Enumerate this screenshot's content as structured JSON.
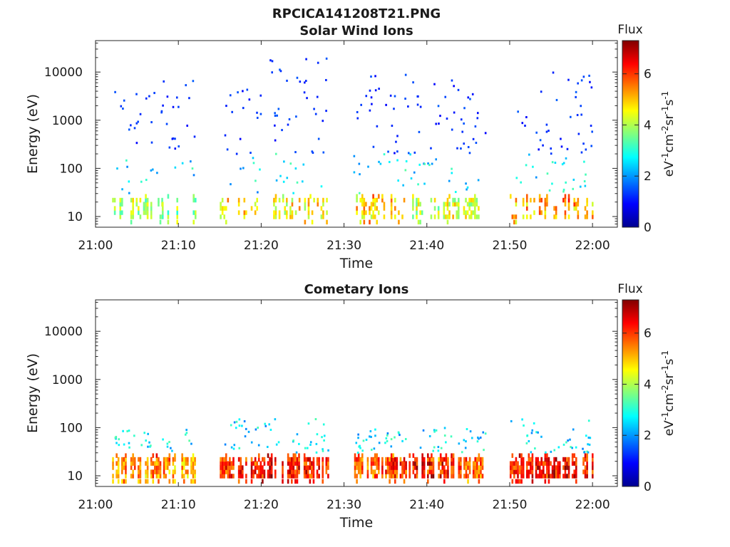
{
  "figure_title": "RPCICA141208T21.PNG",
  "chart_data": [
    {
      "type": "heatmap",
      "title": "Solar Wind Ions",
      "xlabel": "Time",
      "ylabel": "Energy (eV)",
      "xlim": [
        "21:00",
        "22:03"
      ],
      "ylim": [
        6,
        45000
      ],
      "yscale": "log",
      "x_ticks": [
        "21:00",
        "21:10",
        "21:20",
        "21:30",
        "21:40",
        "21:50",
        "22:00"
      ],
      "y_ticks": [
        "10",
        "100",
        "1000",
        "10000"
      ],
      "colorbar": {
        "label": "Flux",
        "units": "eV-1cm-2sr-1s-1",
        "range": [
          0,
          7.3
        ],
        "ticks": [
          "0",
          "2",
          "4",
          "6"
        ]
      },
      "clusters": [
        {
          "start": "21:02",
          "end": "21:08",
          "low_energy_flux": 3.5,
          "low_peak": 4.5,
          "scatter_density": 0.8,
          "scatter_max_eV": 4000
        },
        {
          "start": "21:08",
          "end": "21:12",
          "low_energy_flux": 3.5,
          "low_peak": 4.5,
          "scatter_density": 0.9,
          "scatter_max_eV": 8000
        },
        {
          "start": "21:15",
          "end": "21:20",
          "low_energy_flux": 4.3,
          "low_peak": 5.5,
          "scatter_density": 0.8,
          "scatter_max_eV": 6000
        },
        {
          "start": "21:21",
          "end": "21:28",
          "low_energy_flux": 4.3,
          "low_peak": 5.6,
          "scatter_density": 1.1,
          "scatter_max_eV": 28000
        },
        {
          "start": "21:31",
          "end": "21:38",
          "low_energy_flux": 4.5,
          "low_peak": 5.8,
          "scatter_density": 1.0,
          "scatter_max_eV": 9000
        },
        {
          "start": "21:38",
          "end": "21:47",
          "low_energy_flux": 3.8,
          "low_peak": 5.0,
          "scatter_density": 1.0,
          "scatter_max_eV": 7000
        },
        {
          "start": "21:50",
          "end": "22:00",
          "low_energy_flux": 4.6,
          "low_peak": 6.2,
          "scatter_density": 1.0,
          "scatter_max_eV": 10000
        }
      ]
    },
    {
      "type": "heatmap",
      "title": "Cometary Ions",
      "xlabel": "Time",
      "ylabel": "Energy (eV)",
      "xlim": [
        "21:00",
        "22:03"
      ],
      "ylim": [
        6,
        45000
      ],
      "yscale": "log",
      "x_ticks": [
        "21:00",
        "21:10",
        "21:20",
        "21:30",
        "21:40",
        "21:50",
        "22:00"
      ],
      "y_ticks": [
        "10",
        "100",
        "1000",
        "10000"
      ],
      "colorbar": {
        "label": "Flux",
        "units": "eV-1cm-2sr-1s-1",
        "range": [
          0,
          7.3
        ],
        "ticks": [
          "0",
          "2",
          "4",
          "6"
        ]
      },
      "clusters": [
        {
          "start": "21:02",
          "end": "21:12",
          "low_energy_flux": 4.8,
          "low_peak": 6.3,
          "scatter_density": 0.5,
          "scatter_max_eV": 90
        },
        {
          "start": "21:15",
          "end": "21:28",
          "low_energy_flux": 5.8,
          "low_peak": 7.0,
          "scatter_density": 0.6,
          "scatter_max_eV": 150
        },
        {
          "start": "21:31",
          "end": "21:47",
          "low_energy_flux": 5.4,
          "low_peak": 7.0,
          "scatter_density": 0.6,
          "scatter_max_eV": 100
        },
        {
          "start": "21:50",
          "end": "22:00",
          "low_energy_flux": 5.9,
          "low_peak": 7.1,
          "scatter_density": 0.6,
          "scatter_max_eV": 150
        }
      ]
    }
  ]
}
